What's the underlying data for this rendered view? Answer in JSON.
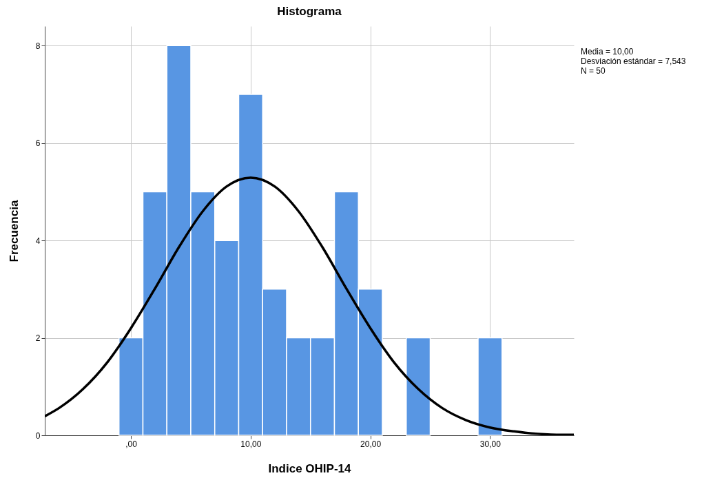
{
  "chart_data": {
    "type": "histogram",
    "title": "Histograma",
    "xlabel": "Indice OHIP-14",
    "ylabel": "Frecuencia",
    "bins": [
      -1,
      1,
      3,
      5,
      7,
      9,
      11,
      13,
      15,
      17,
      19,
      21,
      23,
      25,
      27,
      29,
      31
    ],
    "values": [
      2,
      5,
      8,
      5,
      4,
      7,
      3,
      2,
      2,
      5,
      3,
      0,
      2,
      0,
      0,
      2
    ],
    "color": "#5896e3",
    "series": [
      {
        "type": "line",
        "color": "#000000",
        "x": [
          -7.2,
          -6,
          -4,
          -2,
          0,
          2,
          4,
          6,
          8,
          10,
          12,
          14,
          16,
          18,
          20,
          22,
          24,
          26,
          28,
          30,
          32,
          34,
          36,
          37
        ],
        "values": [
          0.39,
          0.56,
          0.95,
          1.49,
          2.2,
          3.01,
          3.86,
          4.6,
          5.11,
          5.29,
          5.11,
          4.6,
          3.86,
          3.01,
          2.2,
          1.49,
          0.95,
          0.56,
          0.31,
          0.16,
          0.08,
          0.03,
          0.01,
          0.01
        ]
      }
    ],
    "xlim": [
      -7.2,
      37
    ],
    "ylim": [
      0,
      8.4
    ],
    "xticks": [
      {
        "value": 0,
        "label": ",00"
      },
      {
        "value": 10,
        "label": "10,00"
      },
      {
        "value": 20,
        "label": "20,00"
      },
      {
        "value": 30,
        "label": "30,00"
      }
    ],
    "yticks": [
      0,
      2,
      4,
      6,
      8
    ],
    "grid": true,
    "annotations": [
      "Media = 10,00",
      "Desviación estándar = 7,543",
      "N = 50"
    ]
  }
}
